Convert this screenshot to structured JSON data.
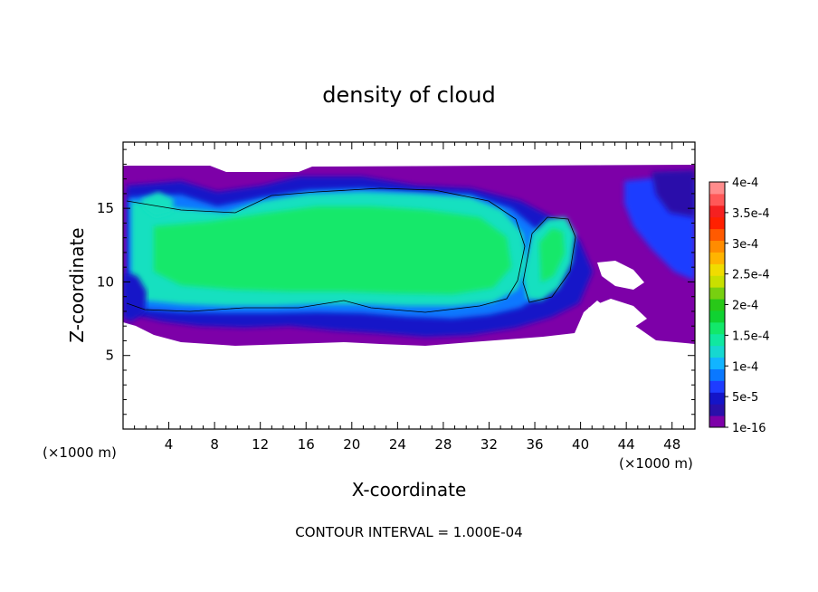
{
  "chart_data": {
    "type": "heatmap",
    "title": "density of cloud",
    "xlabel": "X-coordinate",
    "ylabel": "Z-coordinate",
    "x_unit_left": "(×1000 m)",
    "x_unit_right": "(×1000 m)",
    "xlim": [
      0,
      50
    ],
    "ylim": [
      0,
      19.5
    ],
    "x_ticks": [
      "4",
      "8",
      "12",
      "16",
      "20",
      "24",
      "28",
      "32",
      "36",
      "40",
      "44",
      "48"
    ],
    "x_tick_values": [
      4,
      8,
      12,
      16,
      20,
      24,
      28,
      32,
      36,
      40,
      44,
      48
    ],
    "y_ticks": [
      "5",
      "10",
      "15"
    ],
    "y_tick_values": [
      5,
      10,
      15
    ],
    "footer": "CONTOUR INTERVAL = 1.000E-04",
    "colorbar": {
      "labels": [
        "1e-16",
        "5e-5",
        "1e-4",
        "1.5e-4",
        "2e-4",
        "2.5e-4",
        "3e-4",
        "3.5e-4",
        "4e-4"
      ],
      "levels": [
        1e-16,
        5e-05,
        0.0001,
        0.00015,
        0.0002,
        0.00025,
        0.0003,
        0.00035,
        0.0004
      ],
      "colors": [
        "#7d00a8",
        "#2a0faa",
        "#1414c8",
        "#1e3cff",
        "#0a78ff",
        "#12b4ff",
        "#16d8d0",
        "#10e8a0",
        "#12e86a",
        "#10d232",
        "#28c818",
        "#78d010",
        "#c8e000",
        "#f0dc00",
        "#ffb400",
        "#ff8c00",
        "#ff5a00",
        "#ff2000",
        "#f52020",
        "#ff5858",
        "#ff8c8c"
      ]
    },
    "regions": [
      {
        "level": "1e-16",
        "color": "#7d00a8",
        "shape": "outer cloud envelope"
      },
      {
        "level": "5e-5",
        "color": "#1414c8",
        "shape": "dense edge layer"
      },
      {
        "level": "1e-4",
        "color": "#0a78ff",
        "shape": "inner transition"
      },
      {
        "level": "1.5e-4",
        "color": "#12e0c0",
        "shape": "main cloud body"
      },
      {
        "level": "2e-4",
        "color": "#12e86a",
        "shape": "cloud core"
      }
    ]
  }
}
